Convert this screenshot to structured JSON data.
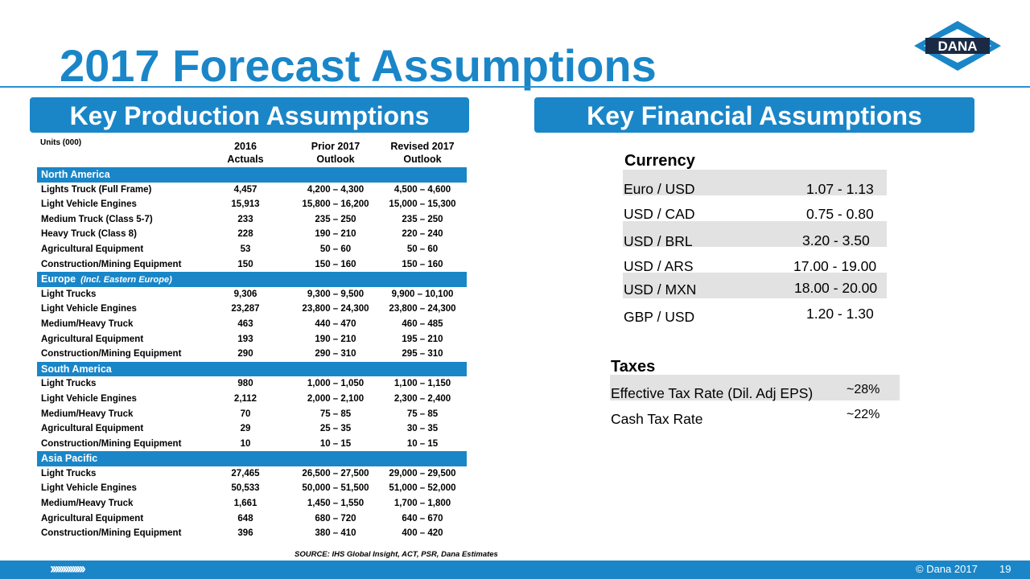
{
  "title": "2017 Forecast Assumptions",
  "logo_text": "DANA",
  "production": {
    "banner": "Key Production Assumptions",
    "units": "Units (000)",
    "headers": [
      [
        "2016",
        "Actuals"
      ],
      [
        "Prior 2017",
        "Outlook"
      ],
      [
        "Revised 2017",
        "Outlook"
      ]
    ],
    "sections": [
      {
        "region": "North America",
        "note": "",
        "rows": [
          [
            "Lights Truck (Full Frame)",
            "4,457",
            "4,200 – 4,300",
            "4,500 – 4,600"
          ],
          [
            "Light Vehicle Engines",
            "15,913",
            "15,800 – 16,200",
            "15,000 – 15,300"
          ],
          [
            "Medium Truck (Class 5-7)",
            "233",
            "235 – 250",
            "235 – 250"
          ],
          [
            "Heavy Truck (Class 8)",
            "228",
            "190 – 210",
            "220 – 240"
          ],
          [
            "Agricultural Equipment",
            "53",
            "50 – 60",
            "50 – 60"
          ],
          [
            "Construction/Mining Equipment",
            "150",
            "150 – 160",
            "150 – 160"
          ]
        ]
      },
      {
        "region": "Europe",
        "note": "(Incl. Eastern Europe)",
        "rows": [
          [
            "Light Trucks",
            "9,306",
            "9,300 – 9,500",
            "9,900 – 10,100"
          ],
          [
            "Light Vehicle Engines",
            "23,287",
            "23,800 – 24,300",
            "23,800 – 24,300"
          ],
          [
            "Medium/Heavy Truck",
            "463",
            "440 – 470",
            "460 – 485"
          ],
          [
            "Agricultural Equipment",
            "193",
            "190 – 210",
            "195 – 210"
          ],
          [
            "Construction/Mining Equipment",
            "290",
            "290 – 310",
            "295 – 310"
          ]
        ]
      },
      {
        "region": "South America",
        "note": "",
        "rows": [
          [
            "Light Trucks",
            "980",
            "1,000 – 1,050",
            "1,100 – 1,150"
          ],
          [
            "Light Vehicle Engines",
            "2,112",
            "2,000 – 2,100",
            "2,300 – 2,400"
          ],
          [
            "Medium/Heavy Truck",
            "70",
            "75 – 85",
            "75 – 85"
          ],
          [
            "Agricultural Equipment",
            "29",
            "25 – 35",
            "30 – 35"
          ],
          [
            "Construction/Mining Equipment",
            "10",
            "10 – 15",
            "10 – 15"
          ]
        ]
      },
      {
        "region": "Asia Pacific",
        "note": "",
        "rows": [
          [
            "Light Trucks",
            "27,465",
            "26,500 – 27,500",
            "29,000 – 29,500"
          ],
          [
            "Light Vehicle Engines",
            "50,533",
            "50,000 – 51,500",
            "51,000 – 52,000"
          ],
          [
            "Medium/Heavy Truck",
            "1,661",
            "1,450 – 1,550",
            "1,700 – 1,800"
          ],
          [
            "Agricultural Equipment",
            "648",
            "680 – 720",
            "640 – 670"
          ],
          [
            "Construction/Mining Equipment",
            "396",
            "380 – 410",
            "400 – 420"
          ]
        ]
      }
    ],
    "source": "SOURCE: IHS Global Insight, ACT, PSR, Dana Estimates"
  },
  "financial": {
    "banner": "Key Financial Assumptions",
    "currency_title": "Currency",
    "currency": [
      [
        "Euro / USD",
        "1.07 - 1.13"
      ],
      [
        "USD / CAD",
        "0.75 - 0.80"
      ],
      [
        "USD / BRL",
        "3.20 - 3.50"
      ],
      [
        "USD / ARS",
        "17.00 - 19.00"
      ],
      [
        "USD / MXN",
        "18.00 - 20.00"
      ],
      [
        "GBP / USD",
        "1.20 - 1.30"
      ]
    ],
    "taxes_title": "Taxes",
    "taxes": [
      [
        "Effective Tax Rate (Dil. Adj EPS)",
        "~28%"
      ],
      [
        "Cash Tax Rate",
        "~22%"
      ]
    ]
  },
  "footer": {
    "chevrons": "››››››››››››››",
    "copyright": "© Dana 2017",
    "page": "19"
  }
}
